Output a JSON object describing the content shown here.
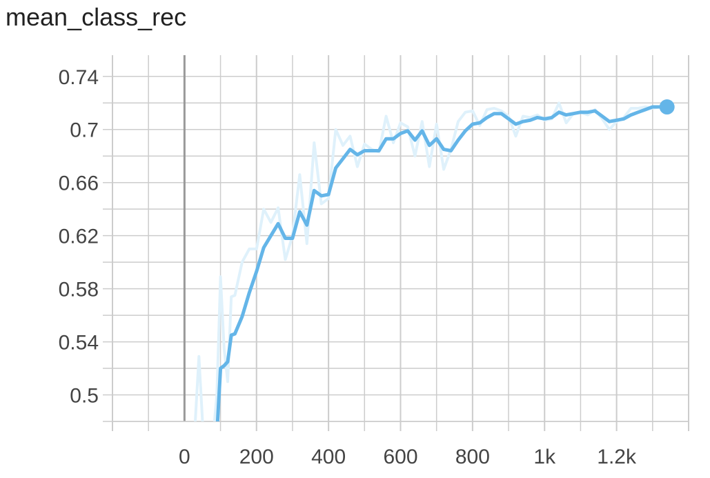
{
  "chart_data": {
    "type": "line",
    "title": "mean_class_rec",
    "xlabel": "",
    "ylabel": "",
    "xlim": [
      -200,
      1400
    ],
    "ylim": [
      0.48,
      0.756
    ],
    "x_ticks": [
      0,
      200,
      400,
      600,
      800,
      1000,
      1200
    ],
    "x_tick_labels": [
      "0",
      "200",
      "400",
      "600",
      "800",
      "1k",
      "1.2k"
    ],
    "y_ticks": [
      0.5,
      0.54,
      0.58,
      0.62,
      0.66,
      0.7,
      0.74
    ],
    "y_tick_labels": [
      "0.5",
      "0.54",
      "0.58",
      "0.62",
      "0.66",
      "0.7",
      "0.74"
    ],
    "grid": true,
    "colors": {
      "smoothed": "#64b5e8",
      "raw": "#dff1fb",
      "grid": "#cccccc",
      "zero_line": "#999999"
    },
    "series": [
      {
        "role": "raw",
        "x": [
          30,
          40,
          50,
          60,
          70,
          80,
          90,
          100,
          110,
          120,
          130,
          140,
          160,
          180,
          200,
          220,
          240,
          260,
          280,
          300,
          320,
          340,
          360,
          380,
          400,
          420,
          440,
          460,
          480,
          500,
          520,
          540,
          560,
          580,
          600,
          620,
          640,
          660,
          680,
          700,
          720,
          740,
          760,
          780,
          800,
          820,
          840,
          860,
          880,
          900,
          920,
          940,
          960,
          980,
          1000,
          1020,
          1040,
          1060,
          1080,
          1100,
          1120,
          1140,
          1160,
          1180,
          1200,
          1220,
          1240,
          1260,
          1280,
          1300,
          1320,
          1340
        ],
        "values": [
          0.48,
          0.529,
          0.48,
          0.47,
          0.47,
          0.47,
          0.5,
          0.589,
          0.535,
          0.51,
          0.574,
          0.575,
          0.6,
          0.61,
          0.61,
          0.64,
          0.63,
          0.641,
          0.602,
          0.62,
          0.666,
          0.614,
          0.69,
          0.644,
          0.648,
          0.7,
          0.688,
          0.695,
          0.672,
          0.689,
          0.685,
          0.683,
          0.71,
          0.69,
          0.705,
          0.702,
          0.68,
          0.706,
          0.672,
          0.704,
          0.67,
          0.685,
          0.706,
          0.713,
          0.714,
          0.703,
          0.715,
          0.716,
          0.714,
          0.71,
          0.695,
          0.71,
          0.709,
          0.711,
          0.707,
          0.708,
          0.72,
          0.705,
          0.712,
          0.713,
          0.711,
          0.715,
          0.708,
          0.7,
          0.706,
          0.709,
          0.716,
          0.716,
          0.717,
          0.716,
          0.717,
          0.717
        ]
      },
      {
        "role": "smoothed",
        "x": [
          30,
          40,
          50,
          60,
          70,
          80,
          90,
          100,
          110,
          120,
          130,
          140,
          160,
          180,
          200,
          220,
          240,
          260,
          280,
          300,
          320,
          340,
          360,
          380,
          400,
          420,
          440,
          460,
          480,
          500,
          520,
          540,
          560,
          580,
          600,
          620,
          640,
          660,
          680,
          700,
          720,
          740,
          760,
          780,
          800,
          820,
          840,
          860,
          880,
          900,
          920,
          940,
          960,
          980,
          1000,
          1020,
          1040,
          1060,
          1080,
          1100,
          1120,
          1140,
          1160,
          1180,
          1200,
          1220,
          1240,
          1260,
          1280,
          1300,
          1320,
          1340
        ],
        "values": [
          0.47,
          0.47,
          0.47,
          0.47,
          0.47,
          0.47,
          0.47,
          0.52,
          0.522,
          0.525,
          0.545,
          0.546,
          0.559,
          0.577,
          0.593,
          0.611,
          0.62,
          0.629,
          0.618,
          0.618,
          0.638,
          0.628,
          0.654,
          0.65,
          0.651,
          0.671,
          0.678,
          0.685,
          0.681,
          0.684,
          0.684,
          0.684,
          0.693,
          0.693,
          0.697,
          0.699,
          0.692,
          0.699,
          0.688,
          0.693,
          0.685,
          0.684,
          0.692,
          0.699,
          0.704,
          0.705,
          0.709,
          0.712,
          0.712,
          0.708,
          0.704,
          0.706,
          0.707,
          0.709,
          0.708,
          0.709,
          0.713,
          0.711,
          0.712,
          0.713,
          0.713,
          0.714,
          0.71,
          0.706,
          0.707,
          0.708,
          0.711,
          0.713,
          0.715,
          0.717,
          0.717,
          0.717
        ]
      }
    ]
  }
}
